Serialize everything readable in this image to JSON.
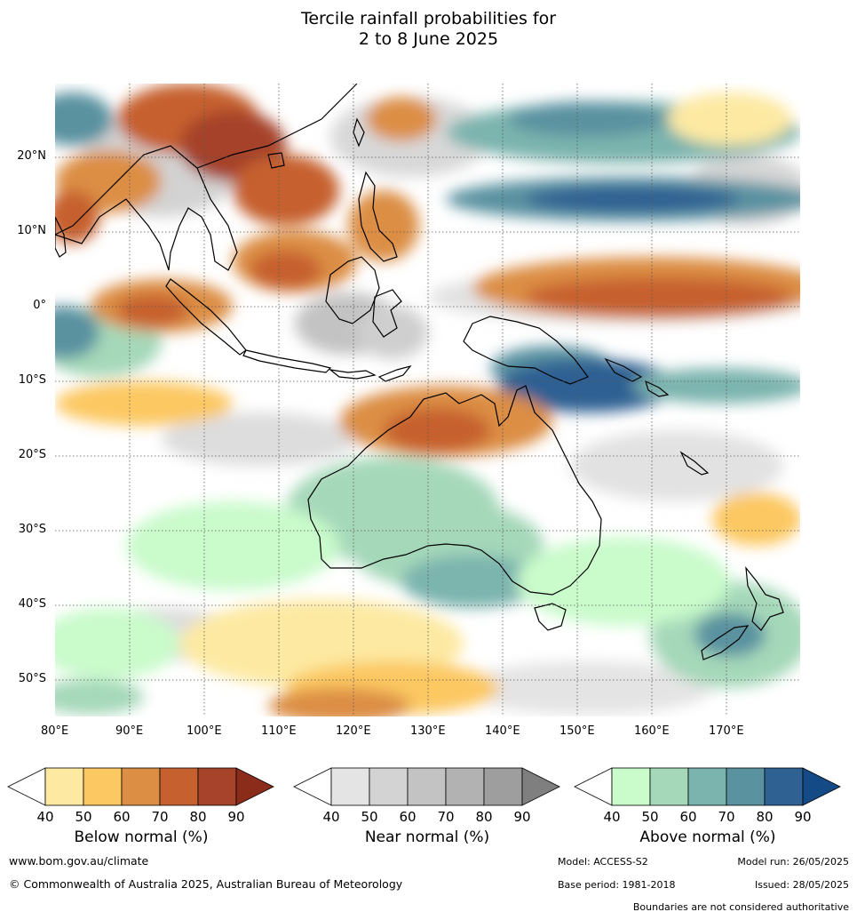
{
  "title": {
    "line1": "Tercile rainfall probabilities for",
    "line2": "2 to 8 June 2025"
  },
  "map": {
    "lon_ticks": [
      "80°E",
      "90°E",
      "100°E",
      "110°E",
      "120°E",
      "130°E",
      "140°E",
      "150°E",
      "160°E",
      "170°E"
    ],
    "lat_ticks": [
      "20°N",
      "10°N",
      "0°",
      "10°S",
      "20°S",
      "30°S",
      "40°S",
      "50°S"
    ]
  },
  "colorbars": [
    {
      "name": "Below normal (%)",
      "ticks": [
        "40",
        "50",
        "60",
        "70",
        "80",
        "90"
      ],
      "colors": [
        "#ffffff",
        "#fde9a2",
        "#fcc862",
        "#dc8e44",
        "#c6602e",
        "#a6432a",
        "#8b2c1b"
      ]
    },
    {
      "name": "Near normal (%)",
      "ticks": [
        "40",
        "50",
        "60",
        "70",
        "80",
        "90"
      ],
      "colors": [
        "#ffffff",
        "#e4e4e4",
        "#d3d3d3",
        "#c3c3c3",
        "#b2b2b2",
        "#9e9e9e",
        "#7f7f7f"
      ]
    },
    {
      "name": "Above normal (%)",
      "ticks": [
        "40",
        "50",
        "60",
        "70",
        "80",
        "90"
      ],
      "colors": [
        "#ffffff",
        "#c9fbcb",
        "#a5d8b9",
        "#7bb4ae",
        "#5a92a0",
        "#2f6193",
        "#144a85"
      ]
    }
  ],
  "footer": {
    "website": "www.bom.gov.au/climate",
    "copyright": "© Commonwealth of Australia 2025, Australian Bureau of Meteorology",
    "model": "Model: ACCESS-S2",
    "model_run": "Model run: 26/05/2025",
    "base_period": "Base period: 1981-2018",
    "issued": "Issued: 28/05/2025",
    "disclaimer": "Boundaries are not considered authoritative"
  }
}
